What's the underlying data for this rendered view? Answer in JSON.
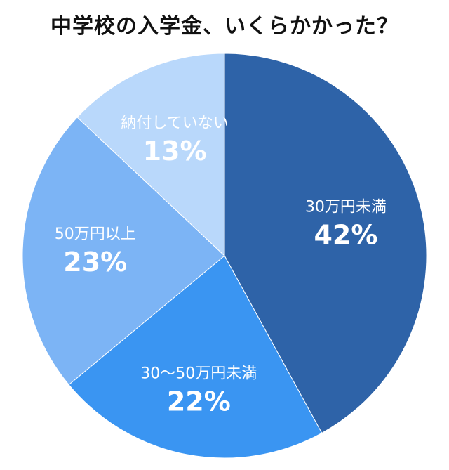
{
  "title": "中学校の入学金、いくらかかった？",
  "chart_data": {
    "type": "pie",
    "title": "中学校の入学金、いくらかかった？",
    "slices": [
      {
        "label": "30万円未満",
        "value": 42,
        "value_label": "42%",
        "color": "#2e63a8",
        "text_color": "#ffffff"
      },
      {
        "label": "30〜50万円未満",
        "value": 22,
        "value_label": "22%",
        "color": "#3a95f2",
        "text_color": "#ffffff"
      },
      {
        "label": "50万円以上",
        "value": 23,
        "value_label": "23%",
        "color": "#7cb4f5",
        "text_color": "#ffffff"
      },
      {
        "label": "納付していない",
        "value": 13,
        "value_label": "13%",
        "color": "#b9d8fb",
        "text_color": "#2a5d9e"
      }
    ],
    "start": "12 o'clock",
    "direction": "clockwise"
  }
}
